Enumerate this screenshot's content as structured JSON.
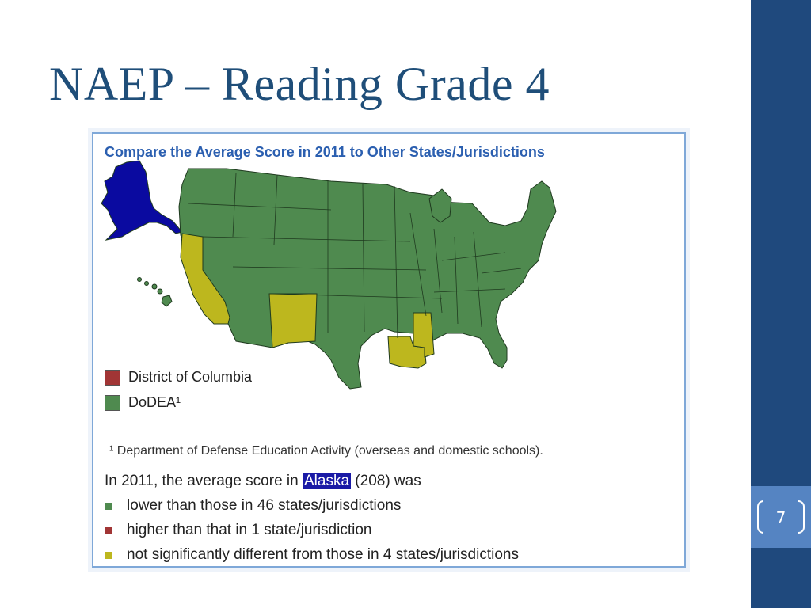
{
  "slide": {
    "title": "NAEP – Reading Grade 4",
    "page_number": "7"
  },
  "figure": {
    "title": "Compare the Average Score in 2011 to Other States/Jurisdictions",
    "colors": {
      "lower": "#4f8a4f",
      "higher": "#a13535",
      "not_significant": "#bdb71e",
      "focal": "#0a0aa0",
      "border": "#1f3a1f"
    },
    "map_regions": [
      {
        "name": "Alaska",
        "category": "focal"
      },
      {
        "name": "California",
        "category": "not_significant"
      },
      {
        "name": "New Mexico",
        "category": "not_significant"
      },
      {
        "name": "Louisiana",
        "category": "not_significant"
      },
      {
        "name": "Mississippi",
        "category": "not_significant"
      },
      {
        "name": "Other states",
        "category": "lower"
      }
    ],
    "legend": [
      {
        "label": "District of Columbia",
        "category": "higher"
      },
      {
        "label": "DoDEA¹",
        "category": "lower"
      }
    ],
    "footnote": "¹ Department of Defense Education Activity (overseas and domestic schools).",
    "summary": {
      "prefix": "In 2011, the average score in ",
      "state": "Alaska",
      "suffix": " (208) was",
      "items": [
        {
          "text": "lower than those in 46 states/jurisdictions",
          "category": "lower"
        },
        {
          "text": "higher than that in 1 state/jurisdiction",
          "category": "higher"
        },
        {
          "text": "not significantly different from those in 4 states/jurisdictions",
          "category": "not_significant"
        }
      ]
    }
  }
}
